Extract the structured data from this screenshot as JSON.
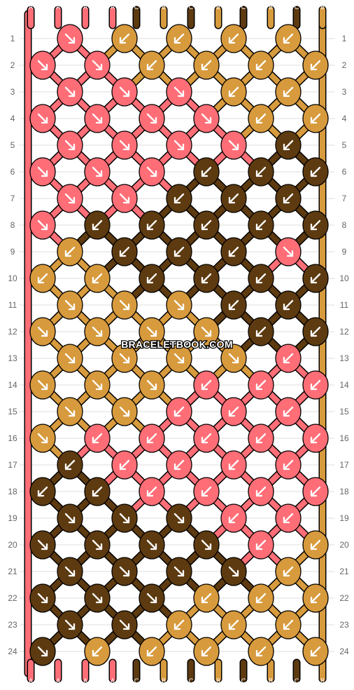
{
  "site_watermark": "BRACELETBOOK.COM",
  "strings_top": [
    "A",
    "A",
    "A",
    "A",
    "C",
    "B",
    "C",
    "B",
    "C",
    "B",
    "C",
    "B"
  ],
  "strings_bottom": [
    "A",
    "A",
    "A",
    "A",
    "C",
    "B",
    "C",
    "B",
    "C",
    "B",
    "C",
    "B"
  ],
  "row_labels": [
    "1",
    "2",
    "3",
    "4",
    "5",
    "6",
    "7",
    "8",
    "9",
    "10",
    "11",
    "12",
    "13",
    "14",
    "15",
    "16",
    "17",
    "18",
    "19",
    "20",
    "21",
    "22",
    "23",
    "24"
  ],
  "colors": {
    "A": "#ff6e77",
    "B": "#d79a3d",
    "C": "#5d3a10",
    "outline": "#000000",
    "grid": "#dcdcdc",
    "row_label": "#666666"
  },
  "knot_rows": [
    [
      "A>",
      "B<",
      "B<",
      "B<",
      "B<"
    ],
    [
      "A>",
      "A>",
      "B<",
      "B<",
      "B<",
      "B<"
    ],
    [
      "A>",
      "A>",
      "A>",
      "B<",
      "B<"
    ],
    [
      "A>",
      "A>",
      "A>",
      "A>",
      "B<",
      "B<"
    ],
    [
      "A>",
      "A>",
      "A>",
      "A>",
      "C<"
    ],
    [
      "A>",
      "A>",
      "A>",
      "C<",
      "C<",
      "C<"
    ],
    [
      "A>",
      "A>",
      "C<",
      "C<",
      "C<"
    ],
    [
      "A>",
      "C<",
      "C<",
      "C<",
      "C<",
      "C<"
    ],
    [
      "B<",
      "C<",
      "C<",
      "C<",
      "A>"
    ],
    [
      "B<",
      "B<",
      "C<",
      "C<",
      "C<",
      "C<"
    ],
    [
      "B>",
      "B>",
      "B>",
      "C<",
      "C<"
    ],
    [
      "B>",
      "B>",
      "B>",
      "B>",
      "C<",
      "C<"
    ],
    [
      "B>",
      "B>",
      "B>",
      "B>",
      "A<"
    ],
    [
      "B>",
      "B>",
      "B>",
      "A<",
      "A<",
      "A<"
    ],
    [
      "B>",
      "B>",
      "A<",
      "A<",
      "A<"
    ],
    [
      "B>",
      "A<",
      "A<",
      "A<",
      "A<",
      "A<"
    ],
    [
      "C<",
      "A<",
      "A<",
      "A<",
      "A<"
    ],
    [
      "C<",
      "C<",
      "A<",
      "A<",
      "A<",
      "A<"
    ],
    [
      "C>",
      "C>",
      "C>",
      "A<",
      "A<"
    ],
    [
      "C>",
      "C>",
      "C>",
      "C>",
      "A<",
      "B<"
    ],
    [
      "C>",
      "C>",
      "C>",
      "C>",
      "B<"
    ],
    [
      "C>",
      "C>",
      "C>",
      "B<",
      "B<",
      "B<"
    ],
    [
      "C>",
      "C>",
      "B<",
      "B<",
      "B<"
    ],
    [
      "C>",
      "B<",
      "B<",
      "B<",
      "B<",
      "B<"
    ]
  ]
}
